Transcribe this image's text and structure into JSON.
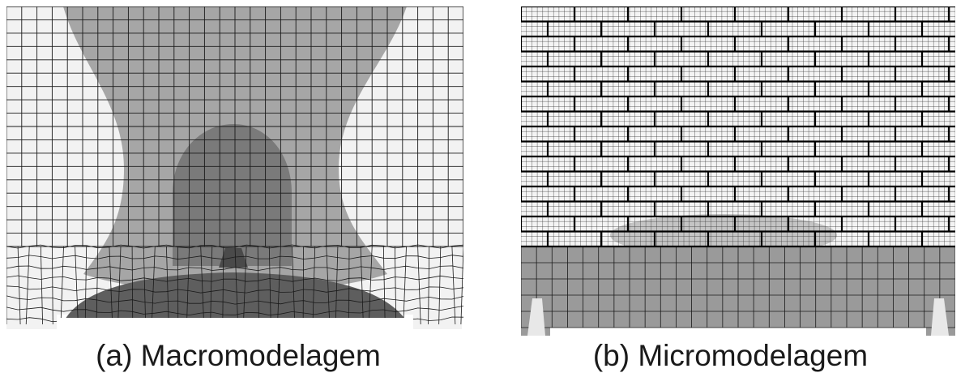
{
  "figures": [
    {
      "id": "a",
      "caption": "(a) Macromodelagem"
    },
    {
      "id": "b",
      "caption": "(b) Micromodelagem"
    }
  ],
  "colors": {
    "light": "#f2f2f2",
    "mid": "#a6a6a6",
    "dark": "#7a7a7a",
    "darker": "#5e5e5e",
    "mesh": "#1a1a1a",
    "base": "#9a9a9a"
  }
}
